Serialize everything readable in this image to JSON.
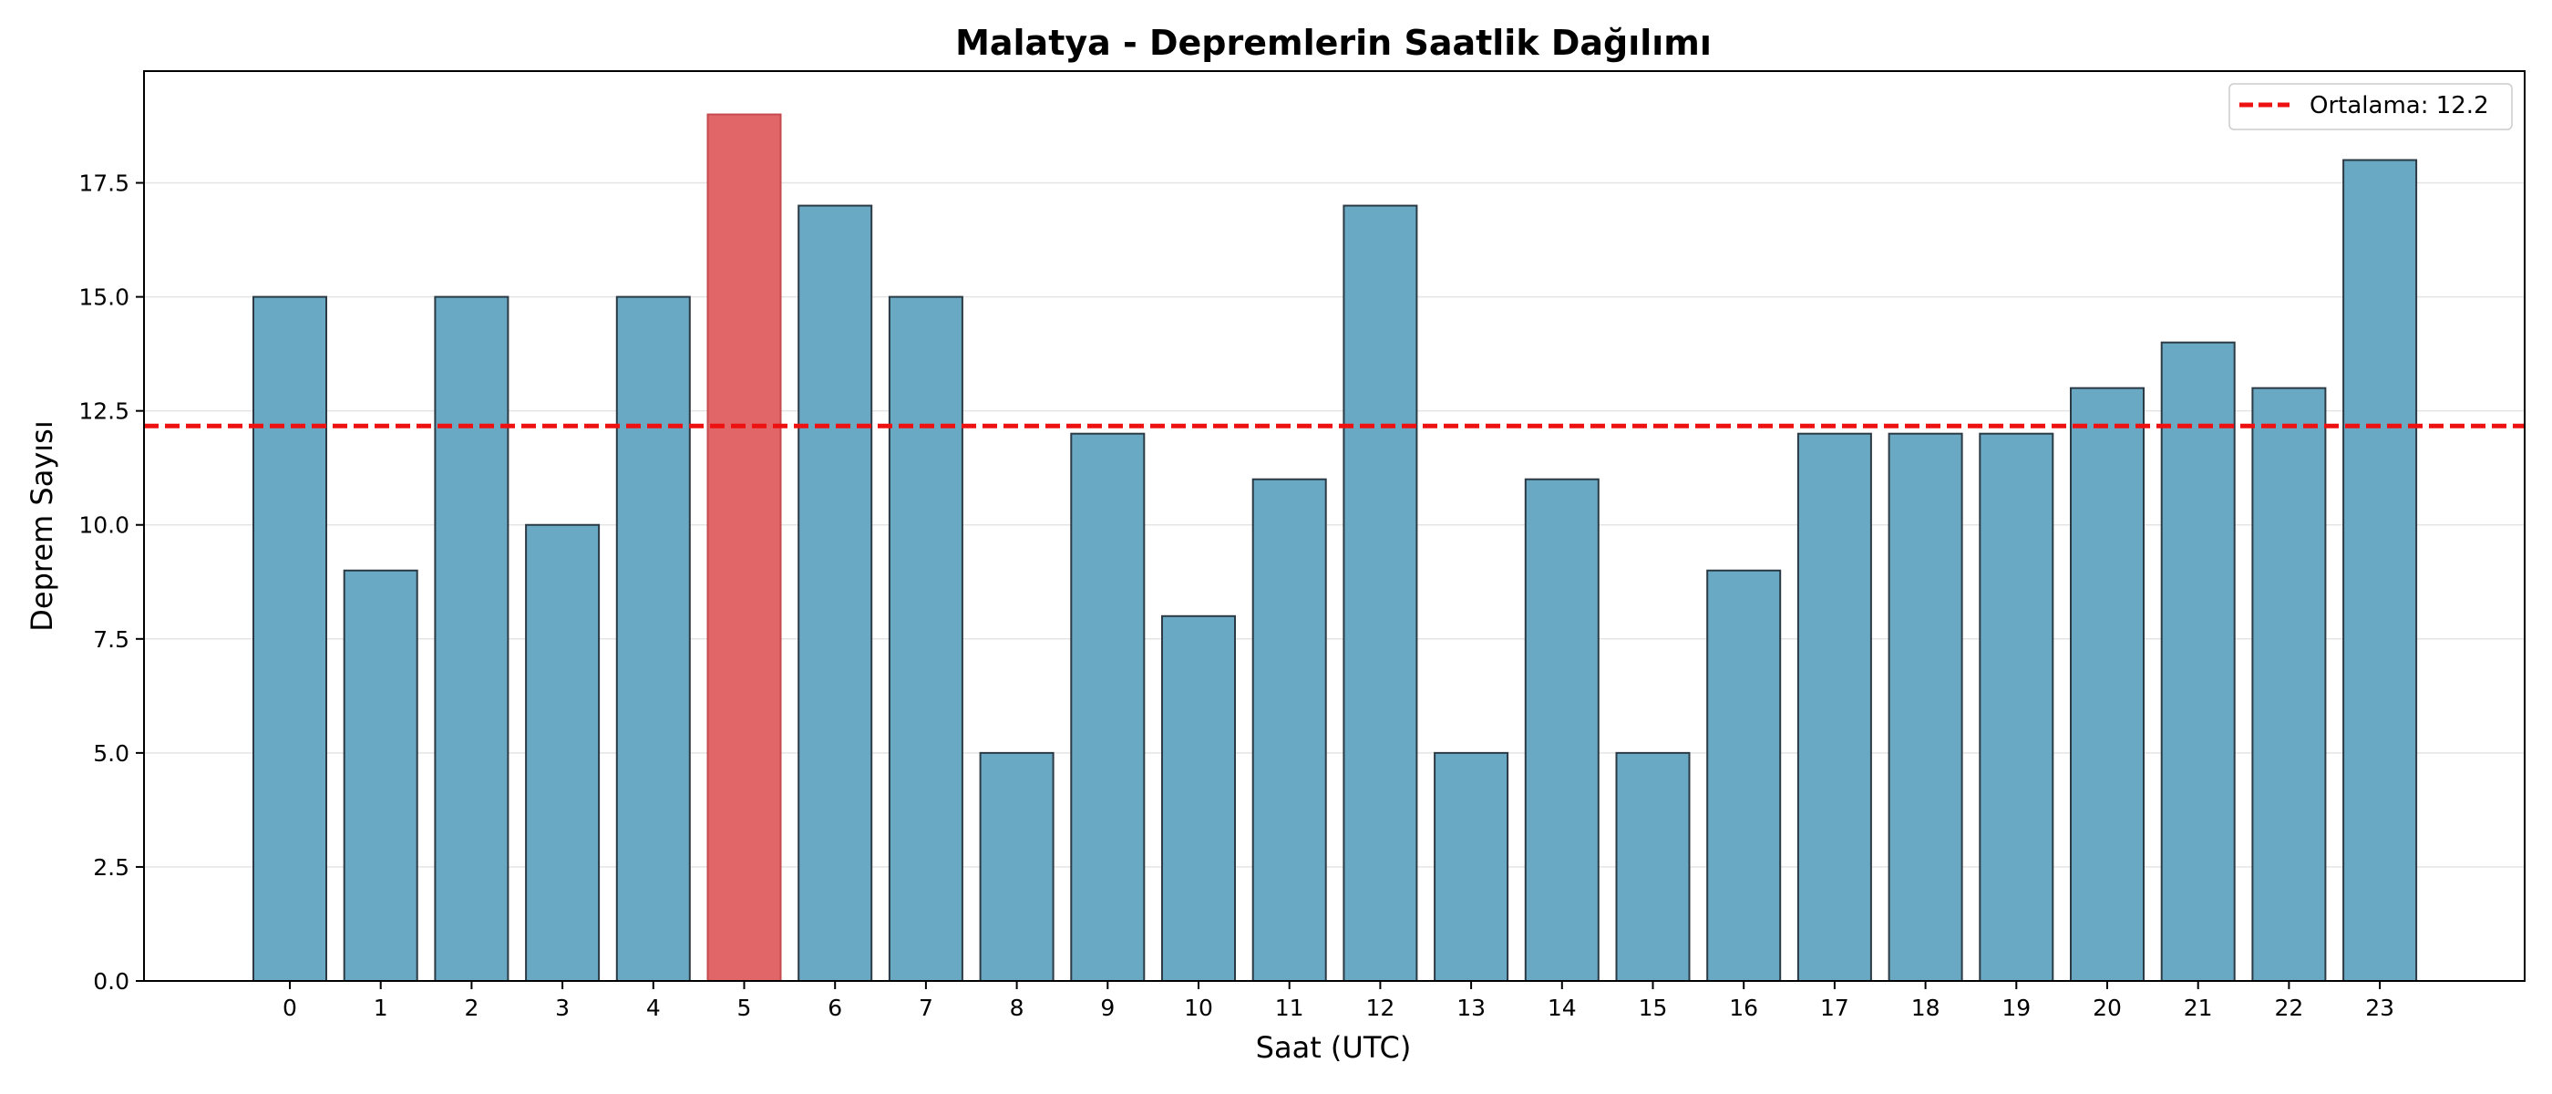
{
  "chart_data": {
    "type": "bar",
    "title": "Malatya - Depremlerin Saatlik Dağılımı",
    "xlabel": "Saat (UTC)",
    "ylabel": "Deprem Sayısı",
    "categories": [
      "0",
      "1",
      "2",
      "3",
      "4",
      "5",
      "6",
      "7",
      "8",
      "9",
      "10",
      "11",
      "12",
      "13",
      "14",
      "15",
      "16",
      "17",
      "18",
      "19",
      "20",
      "21",
      "22",
      "23"
    ],
    "values": [
      15,
      9,
      15,
      10,
      15,
      19,
      17,
      15,
      5,
      12,
      8,
      11,
      17,
      5,
      11,
      5,
      9,
      12,
      12,
      12,
      13,
      14,
      13,
      18
    ],
    "highlight_index": 5,
    "ylim": [
      0,
      19.95
    ],
    "yticks": [
      "0.0",
      "2.5",
      "5.0",
      "7.5",
      "10.0",
      "12.5",
      "15.0",
      "17.5"
    ],
    "ytick_values": [
      0,
      2.5,
      5,
      7.5,
      10,
      12.5,
      15,
      17.5
    ],
    "mean_line": {
      "value": 12.17,
      "label": "Ortalama: 12.2"
    },
    "grid": "horizontal",
    "legend_position": "top-right",
    "colors": {
      "bar": "#6aa9c3",
      "highlight_bar": "#e06668",
      "bar_edge": "#2b3a44",
      "mean_line": "#ee1111",
      "grid": "#e4e4e4"
    }
  }
}
